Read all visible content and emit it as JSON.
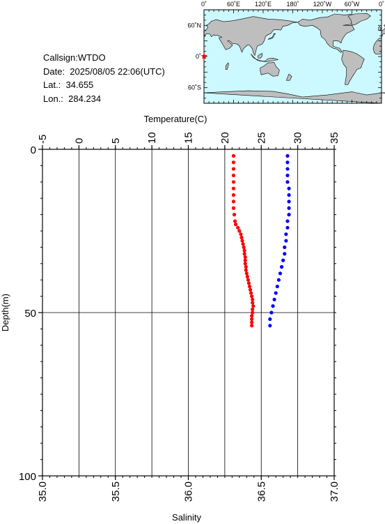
{
  "info": {
    "callsign": "Callsign:WTDO",
    "date": "Date:  2025/08/05 22:06(UTC)",
    "lat": "Lat.:  34.655",
    "lon": "Lon.:  284.234"
  },
  "map": {
    "top_labels": [
      "0˚",
      "60˚E",
      "120˚E",
      "180˚",
      "120˚W",
      "60˚W",
      "0˚"
    ],
    "left_labels": [
      "60˚N",
      "0˚",
      "60˚S"
    ],
    "ocean_color": "#ccf8ff",
    "land_color": "#bebebe",
    "marker_color": "#ff0000"
  },
  "chart_data": {
    "type": "scatter",
    "y_axis": {
      "label": "Depth(m)",
      "range": [
        0,
        100
      ],
      "reversed": true,
      "ticks": [
        0,
        50,
        100
      ]
    },
    "top_axis": {
      "label": "Temperature(C)",
      "range": [
        -5,
        35
      ],
      "ticks": [
        -5,
        0,
        5,
        10,
        15,
        20,
        25,
        30,
        35
      ]
    },
    "bottom_axis": {
      "label": "Salinity",
      "range": [
        35.0,
        37.0
      ],
      "ticks": [
        "35.0",
        "35.5",
        "36.0",
        "36.5",
        "37.0"
      ]
    },
    "grid": true,
    "series": [
      {
        "axis": "temperature",
        "color": "#ff0000",
        "points": [
          [
            21.2,
            2
          ],
          [
            21.2,
            4
          ],
          [
            21.2,
            6
          ],
          [
            21.2,
            8
          ],
          [
            21.2,
            10
          ],
          [
            21.2,
            12
          ],
          [
            21.2,
            14
          ],
          [
            21.2,
            16
          ],
          [
            21.2,
            18
          ],
          [
            21.3,
            20
          ],
          [
            21.4,
            22
          ],
          [
            21.5,
            23
          ],
          [
            21.8,
            24
          ],
          [
            22.0,
            25
          ],
          [
            22.2,
            26
          ],
          [
            22.3,
            27
          ],
          [
            22.4,
            28
          ],
          [
            22.5,
            29
          ],
          [
            22.6,
            30
          ],
          [
            22.7,
            31
          ],
          [
            22.7,
            32
          ],
          [
            22.8,
            33
          ],
          [
            22.8,
            34
          ],
          [
            22.8,
            35
          ],
          [
            22.9,
            36
          ],
          [
            22.9,
            37
          ],
          [
            23.0,
            38
          ],
          [
            23.1,
            39
          ],
          [
            23.2,
            40
          ],
          [
            23.3,
            41
          ],
          [
            23.4,
            42
          ],
          [
            23.5,
            43
          ],
          [
            23.6,
            44
          ],
          [
            23.7,
            45
          ],
          [
            23.8,
            46
          ],
          [
            23.8,
            47
          ],
          [
            23.9,
            48
          ],
          [
            23.8,
            49
          ],
          [
            23.8,
            50
          ],
          [
            23.7,
            51
          ],
          [
            23.7,
            52
          ],
          [
            23.7,
            53
          ],
          [
            23.7,
            54
          ]
        ]
      },
      {
        "axis": "salinity",
        "color": "#0000ff",
        "points": [
          [
            36.68,
            2
          ],
          [
            36.68,
            4
          ],
          [
            36.68,
            6
          ],
          [
            36.68,
            8
          ],
          [
            36.68,
            10
          ],
          [
            36.69,
            12
          ],
          [
            36.69,
            14
          ],
          [
            36.69,
            16
          ],
          [
            36.69,
            18
          ],
          [
            36.69,
            20
          ],
          [
            36.68,
            22
          ],
          [
            36.68,
            24
          ],
          [
            36.67,
            26
          ],
          [
            36.67,
            28
          ],
          [
            36.66,
            30
          ],
          [
            36.66,
            32
          ],
          [
            36.65,
            34
          ],
          [
            36.64,
            36
          ],
          [
            36.63,
            38
          ],
          [
            36.62,
            40
          ],
          [
            36.61,
            42
          ],
          [
            36.6,
            44
          ],
          [
            36.59,
            46
          ],
          [
            36.58,
            48
          ],
          [
            36.57,
            50
          ],
          [
            36.56,
            52
          ],
          [
            36.56,
            54
          ]
        ]
      }
    ]
  }
}
